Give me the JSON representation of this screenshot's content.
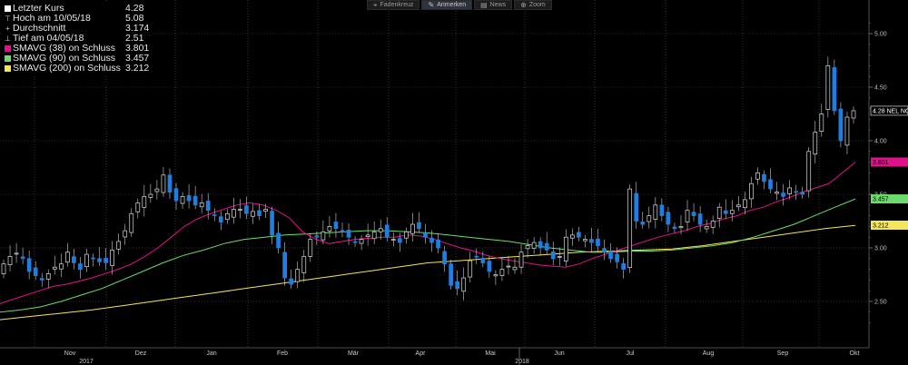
{
  "toolbar": {
    "buttons": [
      {
        "label": "Fadenkreuz",
        "icon": "crosshair-icon"
      },
      {
        "label": "Anmerken",
        "icon": "pencil-icon"
      },
      {
        "label": "News",
        "icon": "news-icon"
      },
      {
        "label": "Zoom",
        "icon": "zoom-icon"
      }
    ]
  },
  "legend": [
    {
      "label": "Letzter Kurs",
      "value": "4.28",
      "color": "#ffffff",
      "marker": "square"
    },
    {
      "label": "Hoch am 10/05/18",
      "value": "5.08",
      "color": "#cccccc",
      "marker": "high"
    },
    {
      "label": "Durchschnitt",
      "value": "3.174",
      "color": "#cccccc",
      "marker": "avg"
    },
    {
      "label": "Tief am 04/05/18",
      "value": "2.51",
      "color": "#cccccc",
      "marker": "low"
    },
    {
      "label": "SMAVG (38)  on Schluss",
      "value": "3.801",
      "color": "#e0128a",
      "marker": "square"
    },
    {
      "label": "SMAVG (90)  on Schluss",
      "value": "3.457",
      "color": "#6bdc6b",
      "marker": "square"
    },
    {
      "label": "SMAVG (200)  on Schluss",
      "value": "3.212",
      "color": "#f2e65a",
      "marker": "square"
    }
  ],
  "chart_data": {
    "type": "candlestick",
    "ylim": [
      2.2,
      5.2
    ],
    "yticks": [
      "2.50",
      "3.00",
      "3.50",
      "4.00",
      "4.50",
      "5.00"
    ],
    "months": [
      "Nov",
      "Dez",
      "Jan",
      "Feb",
      "Mär",
      "Apr",
      "Mai",
      "Jun",
      "Jul",
      "Aug",
      "Sep",
      "Okt"
    ],
    "years": [
      "2017",
      "2018"
    ],
    "grid": true,
    "up_color": "#ffffff",
    "down_color": "#1e7fe0",
    "last_price_tag": "4.28 NEL NO",
    "candles_close": [
      2.85,
      2.92,
      2.95,
      2.9,
      2.78,
      2.74,
      2.7,
      2.76,
      2.82,
      2.85,
      2.96,
      2.86,
      2.8,
      2.94,
      2.9,
      2.87,
      2.86,
      2.98,
      3.06,
      3.16,
      3.32,
      3.42,
      3.48,
      3.5,
      3.55,
      3.68,
      3.52,
      3.44,
      3.48,
      3.44,
      3.4,
      3.42,
      3.35,
      3.3,
      3.24,
      3.32,
      3.36,
      3.36,
      3.32,
      3.34,
      3.3,
      3.36,
      3.12,
      3.0,
      2.72,
      2.66,
      2.8,
      2.92,
      3.08,
      3.1,
      3.15,
      3.2,
      3.18,
      3.15,
      3.1,
      3.05,
      3.08,
      3.12,
      3.15,
      3.18,
      3.1,
      3.08,
      3.05,
      3.15,
      3.22,
      3.18,
      3.1,
      3.05,
      3.0,
      2.85,
      2.65,
      2.62,
      2.72,
      2.88,
      2.92,
      2.86,
      2.78,
      2.75,
      2.8,
      2.83,
      2.82,
      2.96,
      3.02,
      3.05,
      3.0,
      2.98,
      2.9,
      2.92,
      3.1,
      3.12,
      3.1,
      3.08,
      3.05,
      3.02,
      2.96,
      2.9,
      2.87,
      2.8,
      3.55,
      3.25,
      3.22,
      3.3,
      3.4,
      3.3,
      3.22,
      3.18,
      3.2,
      3.35,
      3.3,
      3.22,
      3.2,
      3.25,
      3.38,
      3.32,
      3.35,
      3.4,
      3.45,
      3.6,
      3.7,
      3.62,
      3.55,
      3.52,
      3.48,
      3.56,
      3.52,
      3.5,
      3.9,
      4.08,
      4.25,
      4.7,
      4.28,
      4.0,
      4.22,
      4.28
    ],
    "sma38": [
      2.48,
      2.52,
      2.56,
      2.6,
      2.64,
      2.66,
      2.69,
      2.72,
      2.76,
      2.8,
      2.85,
      2.92,
      3.0,
      3.1,
      3.2,
      3.27,
      3.32,
      3.36,
      3.4,
      3.42,
      3.4,
      3.35,
      3.28,
      3.15,
      3.08,
      3.04,
      3.06,
      3.08,
      3.09,
      3.1,
      3.1,
      3.12,
      3.11,
      3.08,
      3.04,
      3.0,
      2.97,
      2.93,
      2.9,
      2.88,
      2.86,
      2.84,
      2.83,
      2.82,
      2.85,
      2.9,
      2.94,
      2.98,
      3.02,
      3.06,
      3.1,
      3.13,
      3.16,
      3.2,
      3.23,
      3.27,
      3.3,
      3.35,
      3.38,
      3.43,
      3.47,
      3.52,
      3.56,
      3.6,
      3.7,
      3.8
    ],
    "sma90": [
      2.4,
      2.42,
      2.45,
      2.5,
      2.56,
      2.62,
      2.7,
      2.78,
      2.86,
      2.93,
      2.98,
      3.04,
      3.08,
      3.1,
      3.12,
      3.13,
      3.14,
      3.15,
      3.16,
      3.16,
      3.15,
      3.14,
      3.12,
      3.1,
      3.08,
      3.06,
      3.03,
      3.0,
      2.98,
      2.96,
      2.96,
      2.97,
      2.97,
      2.98,
      3.0,
      3.02,
      3.05,
      3.1,
      3.16,
      3.22,
      3.3,
      3.38,
      3.457
    ],
    "sma200": [
      2.33,
      2.36,
      2.39,
      2.42,
      2.46,
      2.5,
      2.54,
      2.58,
      2.62,
      2.66,
      2.7,
      2.74,
      2.78,
      2.82,
      2.86,
      2.88,
      2.9,
      2.92,
      2.94,
      2.96,
      2.97,
      2.98,
      2.99,
      3.02,
      3.06,
      3.1,
      3.14,
      3.18,
      3.21
    ]
  },
  "colors": {
    "grid": "#555555",
    "axis_text": "#bdbdbd",
    "background": "#000000"
  }
}
